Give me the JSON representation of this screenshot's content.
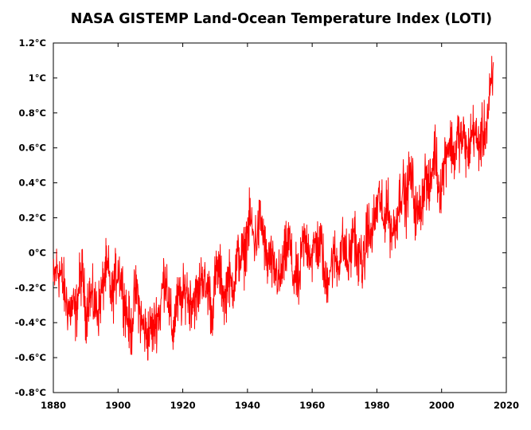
{
  "chart_data": {
    "type": "line",
    "title": "NASA GISTEMP Land-Ocean Temperature Index (LOTI)",
    "xlabel": "",
    "ylabel": "",
    "xlim": [
      1880,
      2020
    ],
    "ylim": [
      -0.8,
      1.2
    ],
    "x_ticks": [
      "1880",
      "1900",
      "1920",
      "1940",
      "1960",
      "1980",
      "2000",
      "2020"
    ],
    "y_ticks": [
      "-0.8°C",
      "-0.6°C",
      "-0.4°C",
      "-0.2°C",
      "0°C",
      "0.2°C",
      "0.4°C",
      "0.6°C",
      "0.8°C",
      "1°C",
      "1.2°C"
    ],
    "grid": false,
    "series": [
      {
        "color": "#ff0000",
        "x": [
          1880,
          1881,
          1882,
          1883,
          1884,
          1885,
          1886,
          1887,
          1888,
          1889,
          1890,
          1891,
          1892,
          1893,
          1894,
          1895,
          1896,
          1897,
          1898,
          1899,
          1900,
          1901,
          1902,
          1903,
          1904,
          1905,
          1906,
          1907,
          1908,
          1909,
          1910,
          1911,
          1912,
          1913,
          1914,
          1915,
          1916,
          1917,
          1918,
          1919,
          1920,
          1921,
          1922,
          1923,
          1924,
          1925,
          1926,
          1927,
          1928,
          1929,
          1930,
          1931,
          1932,
          1933,
          1934,
          1935,
          1936,
          1937,
          1938,
          1939,
          1940,
          1941,
          1942,
          1943,
          1944,
          1945,
          1946,
          1947,
          1948,
          1949,
          1950,
          1951,
          1952,
          1953,
          1954,
          1955,
          1956,
          1957,
          1958,
          1959,
          1960,
          1961,
          1962,
          1963,
          1964,
          1965,
          1966,
          1967,
          1968,
          1969,
          1970,
          1971,
          1972,
          1973,
          1974,
          1975,
          1976,
          1977,
          1978,
          1979,
          1980,
          1981,
          1982,
          1983,
          1984,
          1985,
          1986,
          1987,
          1988,
          1989,
          1990,
          1991,
          1992,
          1993,
          1994,
          1995,
          1996,
          1997,
          1998,
          1999,
          2000,
          2001,
          2002,
          2003,
          2004,
          2005,
          2006,
          2007,
          2008,
          2009,
          2010,
          2011,
          2012,
          2013,
          2014,
          2015,
          2016
        ],
        "values": [
          -0.18,
          -0.09,
          -0.11,
          -0.18,
          -0.28,
          -0.33,
          -0.31,
          -0.36,
          -0.18,
          -0.11,
          -0.36,
          -0.23,
          -0.27,
          -0.31,
          -0.32,
          -0.23,
          -0.11,
          -0.11,
          -0.27,
          -0.17,
          -0.08,
          -0.15,
          -0.28,
          -0.37,
          -0.47,
          -0.26,
          -0.22,
          -0.39,
          -0.43,
          -0.48,
          -0.43,
          -0.44,
          -0.36,
          -0.34,
          -0.15,
          -0.14,
          -0.36,
          -0.46,
          -0.3,
          -0.27,
          -0.27,
          -0.19,
          -0.28,
          -0.26,
          -0.27,
          -0.22,
          -0.1,
          -0.22,
          -0.2,
          -0.36,
          -0.16,
          -0.09,
          -0.16,
          -0.29,
          -0.12,
          -0.2,
          -0.15,
          -0.03,
          -0.02,
          -0.02,
          0.13,
          0.19,
          0.07,
          0.09,
          0.2,
          0.09,
          -0.07,
          -0.03,
          -0.11,
          -0.11,
          -0.17,
          -0.07,
          0.01,
          0.08,
          -0.13,
          -0.14,
          -0.19,
          0.05,
          0.06,
          0.03,
          -0.03,
          0.06,
          0.03,
          0.05,
          -0.2,
          -0.11,
          -0.06,
          -0.02,
          -0.08,
          0.05,
          0.03,
          -0.08,
          0.01,
          0.16,
          -0.07,
          -0.01,
          -0.1,
          0.18,
          0.07,
          0.16,
          0.26,
          0.32,
          0.14,
          0.31,
          0.16,
          0.12,
          0.18,
          0.32,
          0.39,
          0.27,
          0.45,
          0.4,
          0.22,
          0.23,
          0.31,
          0.45,
          0.33,
          0.46,
          0.61,
          0.38,
          0.39,
          0.54,
          0.63,
          0.62,
          0.54,
          0.68,
          0.64,
          0.66,
          0.54,
          0.65,
          0.72,
          0.61,
          0.64,
          0.68,
          0.74,
          0.9,
          1.01
        ]
      }
    ]
  }
}
